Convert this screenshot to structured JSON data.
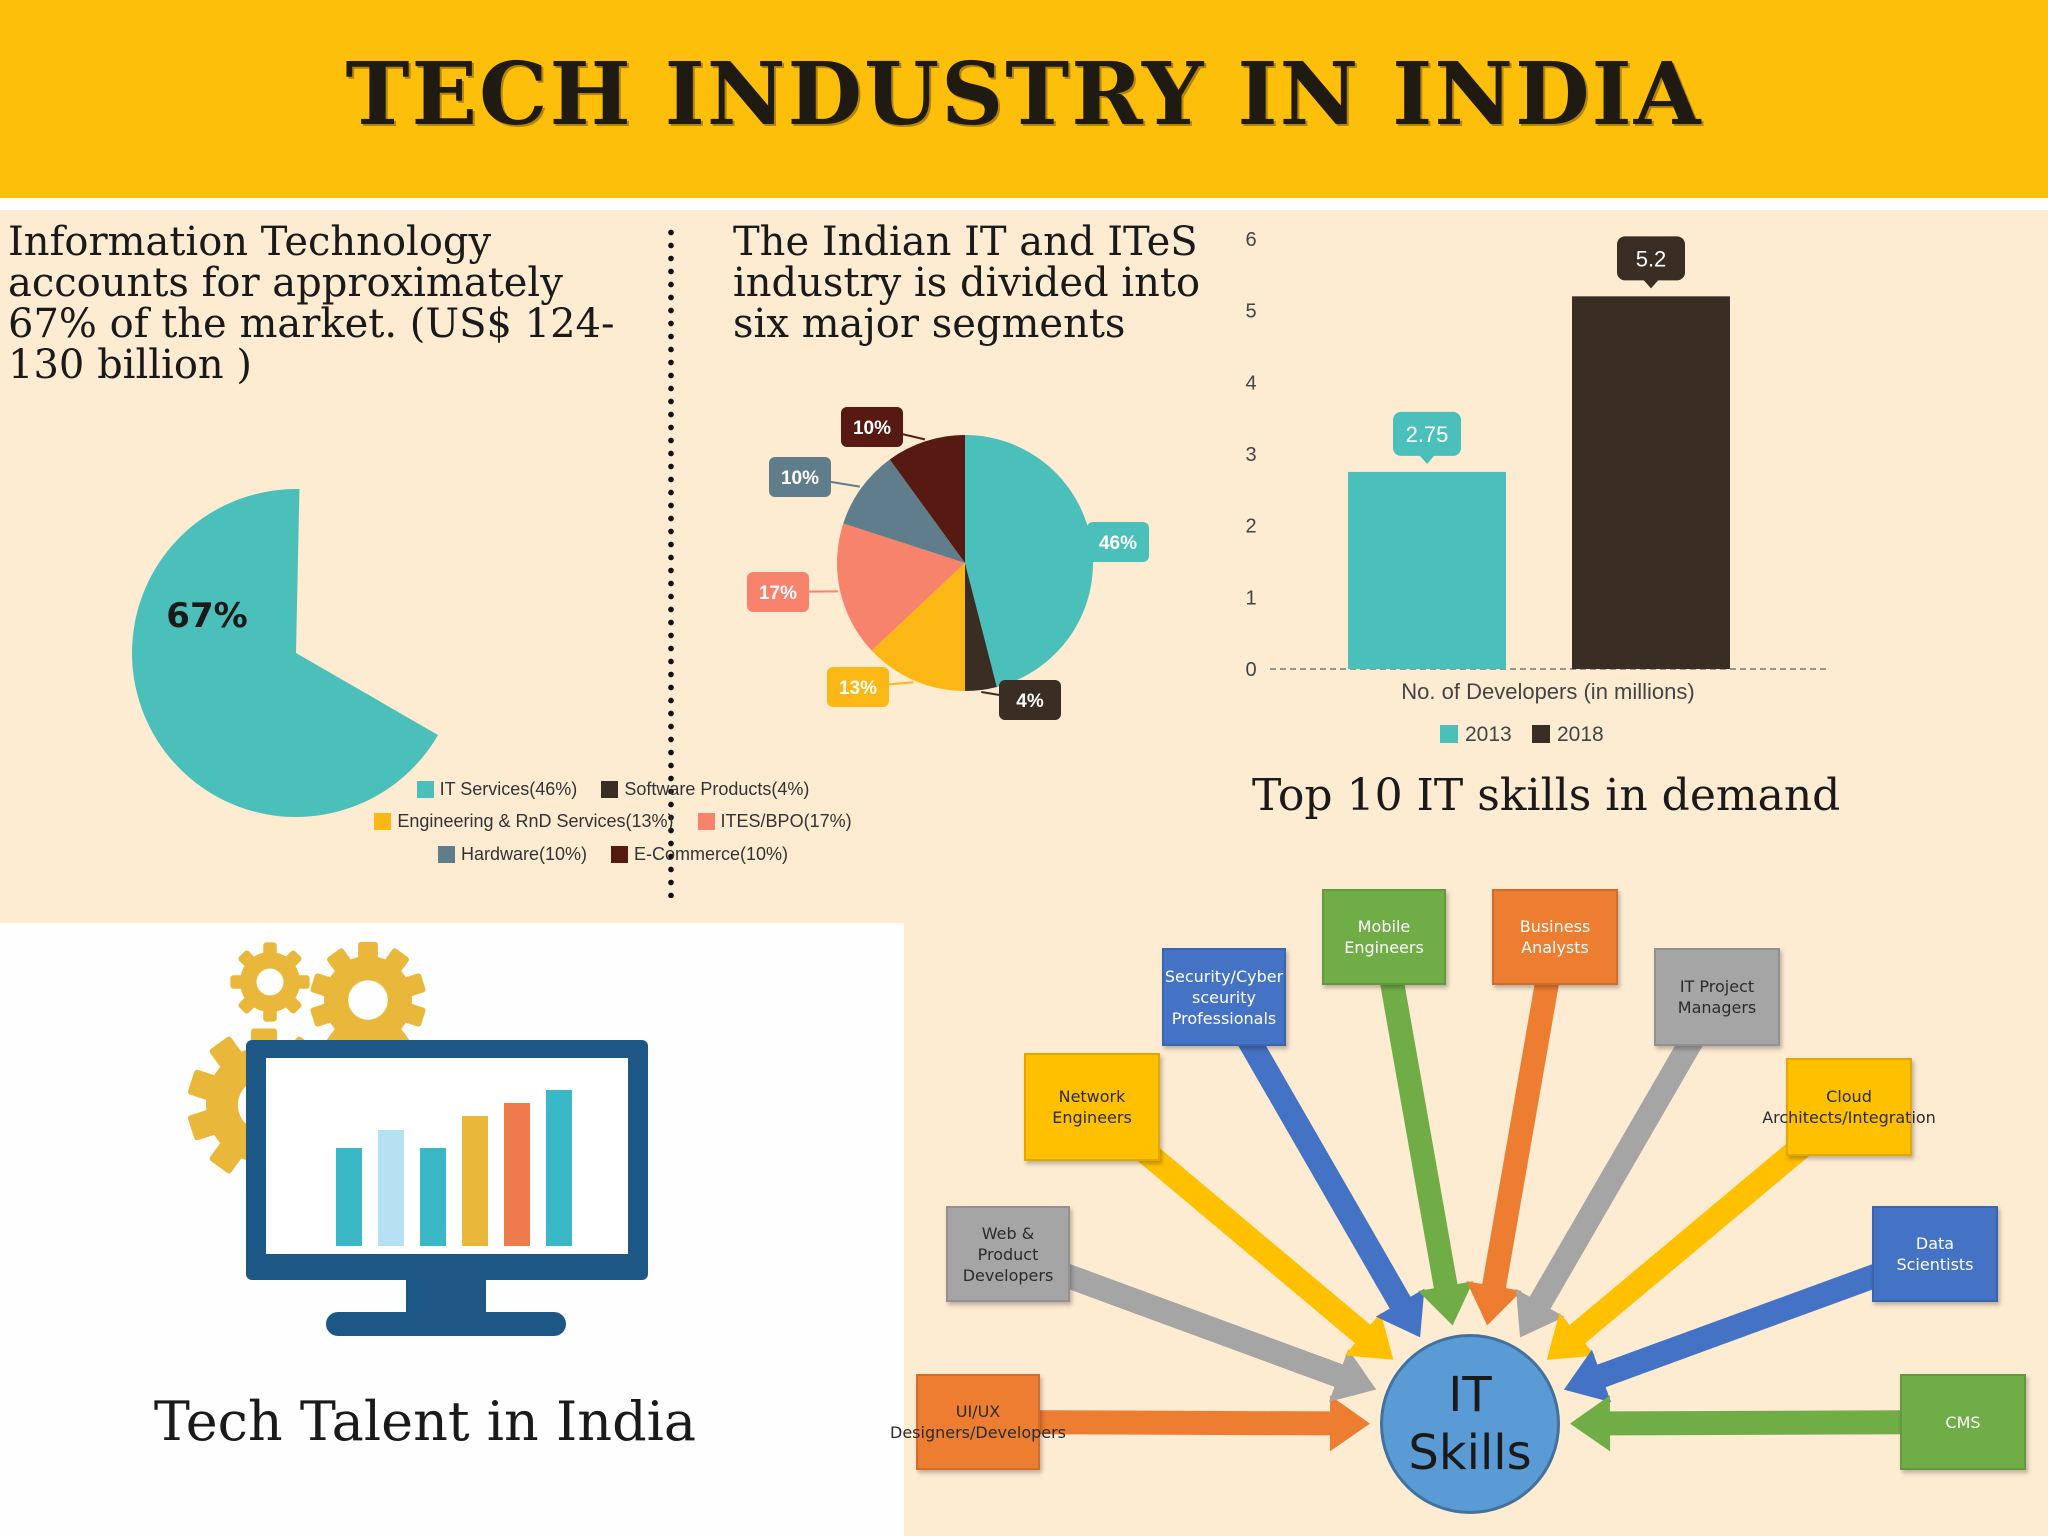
{
  "header": {
    "title": "TECH INDUSTRY IN INDIA"
  },
  "it_share": {
    "text": "Information Technology accounts for approximately 67% of the market. (US$ 124-130 billion )",
    "label": "67%",
    "color": "#4bc0bb"
  },
  "segments": {
    "title": "The Indian IT and ITeS industry is divided into six major segments",
    "legend_rows": [
      [
        "IT Services(46%)",
        "Software Products(4%)"
      ],
      [
        "Engineering & RnD Services(13%)",
        "ITES/BPO(17%)"
      ],
      [
        "Hardware(10%)",
        "E-Commerce(10%)"
      ]
    ]
  },
  "developers": {
    "xlabel": "No. of Developers (in millions)",
    "legend": [
      "2013",
      "2018"
    ]
  },
  "skills": {
    "title": "Top 10 IT skills in demand",
    "hub_line1": "IT",
    "hub_line2": "Skills",
    "items": [
      {
        "label": "UI/UX Designers/Developers",
        "color": "#ed7d31"
      },
      {
        "label": "Web & Product Developers",
        "color": "#a5a5a5"
      },
      {
        "label": "Network Engineers",
        "color": "#ffc000"
      },
      {
        "label": "Security/Cyber sceurity Professionals",
        "color": "#4472c4"
      },
      {
        "label": "Mobile Engineers",
        "color": "#70ad47"
      },
      {
        "label": "Business Analysts",
        "color": "#ed7d31"
      },
      {
        "label": "IT Project Managers",
        "color": "#a5a5a5"
      },
      {
        "label": "Cloud Architects/Integration",
        "color": "#ffc000"
      },
      {
        "label": "Data Scientists",
        "color": "#4472c4"
      },
      {
        "label": "CMS",
        "color": "#70ad47"
      }
    ]
  },
  "talent": {
    "title": "Tech Talent in India"
  },
  "chart_data": [
    {
      "type": "pie",
      "title": "",
      "categories": [
        "Information Technology"
      ],
      "values": [
        67
      ],
      "labels": [
        "67%"
      ]
    },
    {
      "type": "pie",
      "title": "",
      "categories": [
        "IT Services",
        "Software Products",
        "Engineering & RnD Services",
        "ITES/BPO",
        "Hardware",
        "E-Commerce"
      ],
      "values": [
        46,
        4,
        13,
        17,
        10,
        10
      ],
      "labels": [
        "46%",
        "4%",
        "13%",
        "17%",
        "10%",
        "10%"
      ],
      "colors": [
        "#4bc0bb",
        "#3a2e24",
        "#fbb815",
        "#f8836d",
        "#607d8b",
        "#561a12"
      ]
    },
    {
      "type": "bar",
      "title": "",
      "xlabel": "No. of Developers (in millions)",
      "ylabel": "",
      "categories": [
        "No. of Developers (in millions)"
      ],
      "series": [
        {
          "name": "2013",
          "values": [
            2.75
          ],
          "color": "#4bc0bb"
        },
        {
          "name": "2018",
          "values": [
            5.2
          ],
          "color": "#3a2e24"
        }
      ],
      "ylim": [
        0,
        6
      ],
      "yticks": [
        0,
        1,
        2,
        3,
        4,
        5,
        6
      ],
      "grid": false,
      "legend": "bottom"
    }
  ]
}
